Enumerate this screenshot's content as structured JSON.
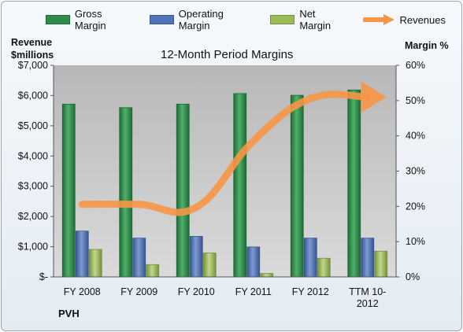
{
  "chart_data": {
    "type": "bar",
    "title": "12-Month Period Margins",
    "categories": [
      "FY 2008",
      "FY 2009",
      "FY 2010",
      "FY 2011",
      "FY 2012",
      "TTM 10-2012"
    ],
    "series": [
      {
        "name": "Gross Margin",
        "axis": "right",
        "color": "#2e8b4a",
        "values": [
          49.0,
          48.0,
          49.0,
          52.0,
          51.5,
          53.0
        ]
      },
      {
        "name": "Operating Margin",
        "axis": "right",
        "color": "#4f73b8",
        "values": [
          13.0,
          11.0,
          11.5,
          8.5,
          11.0,
          11.0
        ]
      },
      {
        "name": "Net Margin",
        "axis": "right",
        "color": "#9bbb59",
        "values": [
          7.8,
          3.5,
          6.8,
          1.0,
          5.3,
          7.3
        ]
      },
      {
        "name": "Revenues",
        "type": "line",
        "axis": "left",
        "color": "#f79646",
        "values": [
          2400,
          2400,
          2300,
          4500,
          5900,
          5950
        ]
      }
    ],
    "left_axis": {
      "label_line1": "Revenue",
      "label_line2": "$millions",
      "min": 0,
      "max": 7000,
      "step": 1000,
      "tick_labels": [
        "$-",
        "$1,000",
        "$2,000",
        "$3,000",
        "$4,000",
        "$5,000",
        "$6,000",
        "$7,000"
      ]
    },
    "right_axis": {
      "label": "Margin %",
      "min": 0,
      "max": 60,
      "step": 10,
      "tick_labels": [
        "0%",
        "10%",
        "20%",
        "30%",
        "40%",
        "50%",
        "60%"
      ]
    },
    "category_labels": [
      [
        "FY 2008"
      ],
      [
        "FY 2009"
      ],
      [
        "FY 2010"
      ],
      [
        "FY 2011"
      ],
      [
        "FY 2012"
      ],
      [
        "TTM 10-",
        "2012"
      ]
    ],
    "grid": false,
    "legend_position": "top",
    "footer": "PVH",
    "plot_background": "#c8c8c8"
  }
}
